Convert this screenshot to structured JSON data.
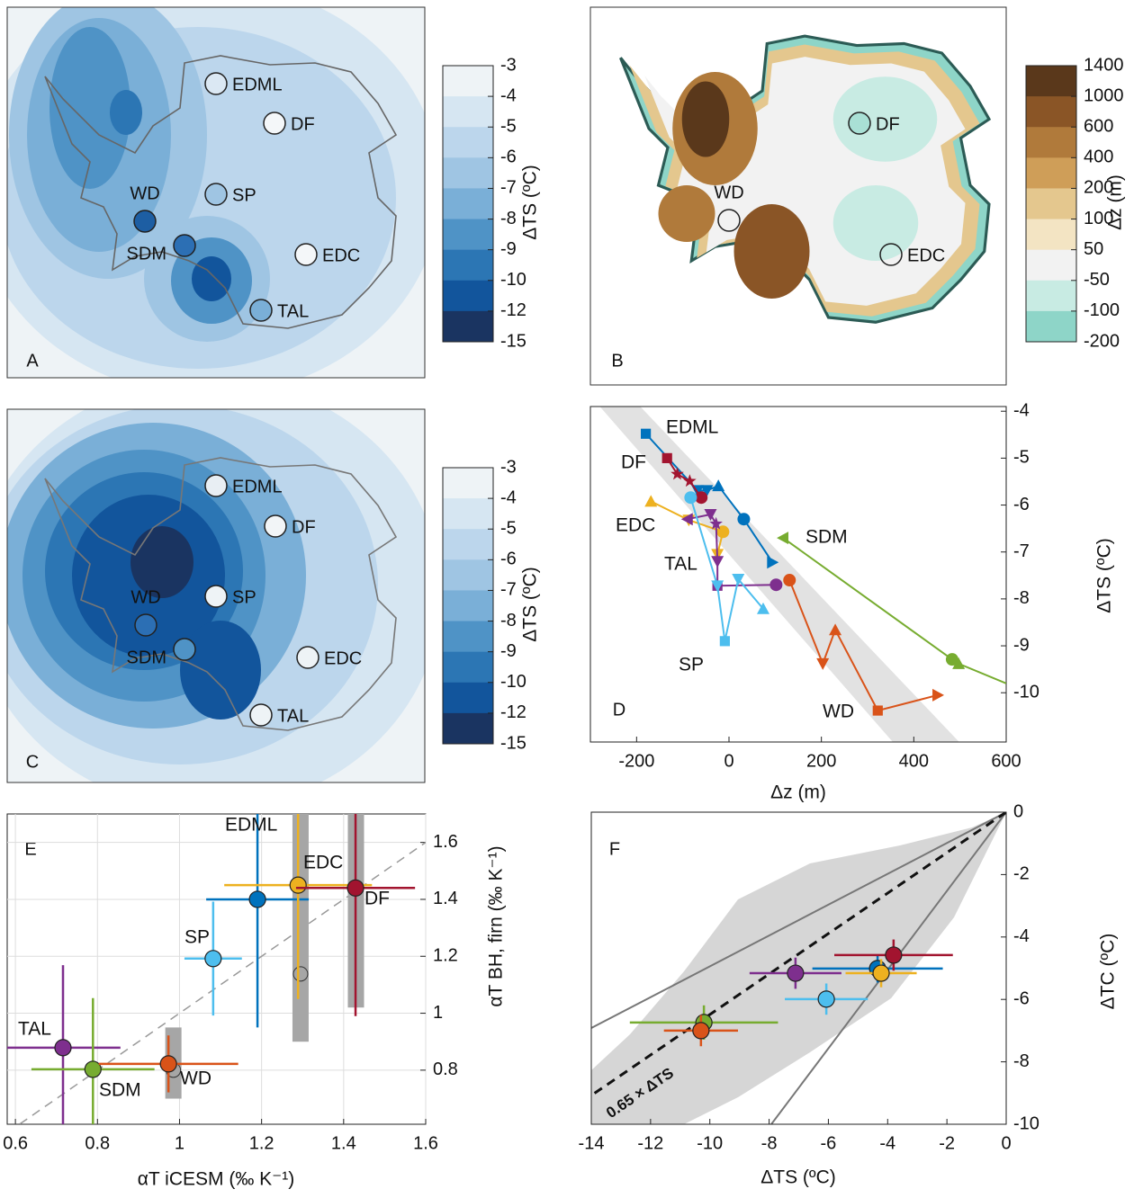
{
  "chart_data": [
    {
      "type": "map",
      "panel": "A",
      "sites": [
        "EDML",
        "DF",
        "SP",
        "WD",
        "SDM",
        "EDC",
        "TAL"
      ],
      "colorbar": {
        "label": "ΔTS (ºC)",
        "ticks": [
          -3,
          -4,
          -5,
          -6,
          -7,
          -8,
          -9,
          -10,
          -12,
          -15
        ],
        "colors": [
          "#eef3f6",
          "#d6e6f2",
          "#bcd6ec",
          "#9fc5e3",
          "#7aafd7",
          "#4f93c6",
          "#2c76b4",
          "#12559c",
          "#1a3461"
        ]
      }
    },
    {
      "type": "map",
      "panel": "B",
      "sites": [
        "DF",
        "WD",
        "EDC"
      ],
      "colorbar": {
        "label": "Δz (m)",
        "ticks": [
          1400,
          1000,
          600,
          400,
          200,
          100,
          50,
          -50,
          -100,
          -200
        ],
        "colors": [
          "#5a381b",
          "#8a5526",
          "#b07a3b",
          "#cf9e58",
          "#e4c78e",
          "#f3e4c3",
          "#f2f2f2",
          "#c8ebe3",
          "#8ed5c8"
        ]
      }
    },
    {
      "type": "map",
      "panel": "C",
      "sites": [
        "EDML",
        "DF",
        "SP",
        "WD",
        "SDM",
        "EDC",
        "TAL"
      ],
      "colorbar": {
        "label": "ΔTS (ºC)",
        "ticks": [
          -3,
          -4,
          -5,
          -6,
          -7,
          -8,
          -9,
          -10,
          -12,
          -15
        ],
        "colors": [
          "#eef3f6",
          "#d6e6f2",
          "#bcd6ec",
          "#9fc5e3",
          "#7aafd7",
          "#4f93c6",
          "#2c76b4",
          "#12559c",
          "#1a3461"
        ]
      }
    },
    {
      "type": "line",
      "panel": "D",
      "xlabel": "Δz (m)",
      "ylabel": "ΔTS (ºC)",
      "xlim": [
        -300,
        600
      ],
      "xticks": [
        -200,
        0,
        200,
        400,
        600
      ],
      "ylim": [
        -11.05,
        -3.9
      ],
      "yticks": [
        -4,
        -5,
        -6,
        -7,
        -8,
        -9,
        -10
      ],
      "series": [
        {
          "name": "EDML",
          "color": "#0072BD",
          "x": [
            -180,
            -68,
            -48,
            -23,
            32,
            94
          ],
          "values": [
            -4.48,
            -5.69,
            -5.69,
            -5.59,
            -6.3,
            -7.22
          ],
          "markers": [
            "square",
            "tri-down",
            "tri-down",
            "tri-up",
            "circle",
            "tri-right"
          ]
        },
        {
          "name": "DF",
          "color": "#A2142F",
          "x": [
            -134,
            -112,
            -85,
            -60
          ],
          "values": [
            -5.0,
            -5.34,
            -5.49,
            -5.84
          ],
          "markers": [
            "square",
            "star",
            "star",
            "circle"
          ]
        },
        {
          "name": "EDC",
          "color": "#EDB120",
          "x": [
            -169,
            -87,
            -13,
            -25
          ],
          "values": [
            -5.92,
            -6.32,
            -6.57,
            -7.05
          ],
          "markers": [
            "tri-up",
            "tri-down",
            "circle",
            "tri-down"
          ]
        },
        {
          "name": "TAL",
          "color": "#7E2F8E",
          "x": [
            -90,
            -40,
            -28,
            -25,
            -25,
            102
          ],
          "values": [
            -6.3,
            -6.2,
            -6.4,
            -7.2,
            -7.72,
            -7.7
          ],
          "markers": [
            "tri-left",
            "tri-down",
            "star",
            "tri-down",
            "square",
            "circle"
          ]
        },
        {
          "name": "SP",
          "color": "#4DBEEE",
          "x": [
            -83,
            -25,
            -9,
            20,
            74
          ],
          "values": [
            -5.84,
            -7.72,
            -8.9,
            -7.58,
            -8.21
          ],
          "markers": [
            "circle",
            "tri-down",
            "square",
            "tri-down",
            "tri-up"
          ]
        },
        {
          "name": "WD",
          "color": "#D95319",
          "x": [
            131,
            203,
            230,
            322,
            452
          ],
          "values": [
            -7.6,
            -9.38,
            -8.66,
            -10.38,
            -10.05
          ],
          "markers": [
            "circle",
            "tri-down",
            "tri-up",
            "square",
            "tri-right"
          ]
        },
        {
          "name": "SDM",
          "color": "#77AC30",
          "x": [
            117,
            483,
            497,
            600
          ],
          "values": [
            -6.7,
            -9.29,
            -9.38,
            -9.8
          ],
          "markers": [
            "tri-left",
            "circle",
            "tri-up",
            null
          ]
        }
      ]
    },
    {
      "type": "errorbar",
      "panel": "E",
      "xlabel": "αT iCESM (‰ K⁻¹)",
      "ylabel": "αT BH, firn (‰ K⁻¹)",
      "xlim": [
        0.58,
        1.6
      ],
      "xticks": [
        0.6,
        0.8,
        1,
        1.2,
        1.4,
        1.6
      ],
      "ylim": [
        0.61,
        1.7
      ],
      "yticks": [
        0.8,
        1,
        1.2,
        1.4,
        1.6
      ],
      "grid": true,
      "reference": {
        "color": "#a6a6a6",
        "x": [
          0.985,
          1.295,
          1.43
        ],
        "values": [
          0.8,
          1.138,
          null
        ],
        "low": [
          0.7,
          0.9,
          1.02
        ],
        "high": [
          0.95,
          1.7,
          1.7
        ]
      },
      "series": [
        {
          "name": "TAL",
          "color": "#7E2F8E",
          "x": [
            0.716
          ],
          "values": [
            0.879
          ],
          "xerr": [
            0.14
          ],
          "yerr": [
            0.29
          ]
        },
        {
          "name": "SDM",
          "color": "#77AC30",
          "x": [
            0.789
          ],
          "values": [
            0.803
          ],
          "xerr": [
            0.15
          ],
          "yerr": [
            0.25
          ]
        },
        {
          "name": "WD",
          "color": "#D95319",
          "x": [
            0.973
          ],
          "values": [
            0.822
          ],
          "xerr": [
            0.17
          ],
          "yerr": [
            0.1
          ]
        },
        {
          "name": "SP",
          "color": "#4DBEEE",
          "x": [
            1.082
          ],
          "values": [
            1.192
          ],
          "xerr": [
            0.07
          ],
          "yerr": [
            0.2
          ]
        },
        {
          "name": "EDML",
          "color": "#0072BD",
          "x": [
            1.19
          ],
          "values": [
            1.4
          ],
          "xerr": [
            0.125
          ],
          "yerr": [
            0.45
          ]
        },
        {
          "name": "EDC",
          "color": "#EDB120",
          "x": [
            1.289
          ],
          "values": [
            1.45
          ],
          "xerr": [
            0.18
          ],
          "yerr": [
            0.4
          ]
        },
        {
          "name": "DF",
          "color": "#A2142F",
          "x": [
            1.429
          ],
          "values": [
            1.44
          ],
          "xerr": [
            0.145
          ],
          "yerr": [
            0.45
          ]
        }
      ]
    },
    {
      "type": "errorbar",
      "panel": "F",
      "xlabel": "ΔTS (ºC)",
      "ylabel": "ΔTC (ºC)",
      "annotation": "0.65 × ΔTS",
      "xlim": [
        -14,
        0
      ],
      "xticks": [
        -14,
        -12,
        -10,
        -8,
        -6,
        -4,
        -2,
        0
      ],
      "ylim": [
        -10,
        0
      ],
      "yticks": [
        0,
        -2,
        -4,
        -6,
        -8,
        -10
      ],
      "series": [
        {
          "color": "#7E2F8E",
          "x": [
            -7.11
          ],
          "values": [
            -5.16
          ],
          "xerr": [
            1.55
          ],
          "yerr": [
            0.5
          ]
        },
        {
          "color": "#4DBEEE",
          "x": [
            -6.07
          ],
          "values": [
            -5.99
          ],
          "xerr": [
            1.4
          ],
          "yerr": [
            0.5
          ]
        },
        {
          "color": "#0072BD",
          "x": [
            -4.34
          ],
          "values": [
            -5.01
          ],
          "xerr": [
            2.2
          ],
          "yerr": [
            0.45
          ]
        },
        {
          "color": "#EDB120",
          "x": [
            -4.22
          ],
          "values": [
            -5.16
          ],
          "xerr": [
            1.2
          ],
          "yerr": [
            0.45
          ]
        },
        {
          "color": "#A2142F",
          "x": [
            -3.8
          ],
          "values": [
            -4.58
          ],
          "xerr": [
            2.0
          ],
          "yerr": [
            0.5
          ]
        },
        {
          "color": "#77AC30",
          "x": [
            -10.2
          ],
          "values": [
            -6.74
          ],
          "xerr": [
            2.5
          ],
          "yerr": [
            0.55
          ]
        },
        {
          "color": "#D95319",
          "x": [
            -10.3
          ],
          "values": [
            -7.0
          ],
          "xerr": [
            1.25
          ],
          "yerr": [
            0.5
          ]
        }
      ]
    }
  ]
}
